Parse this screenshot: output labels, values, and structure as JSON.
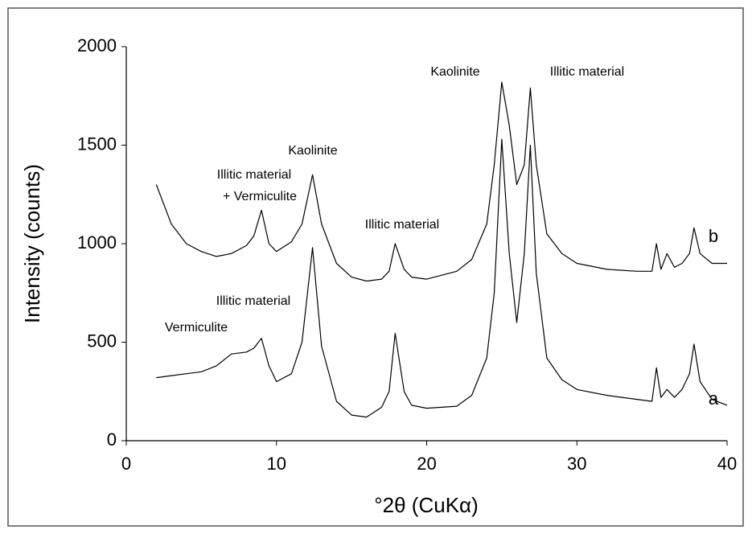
{
  "chart_data": {
    "type": "line",
    "x_label": "°2θ (CuKα)",
    "y_label": "Intensity (counts)",
    "x": [
      2,
      3,
      4,
      5,
      6,
      7,
      8,
      8.5,
      9,
      9.5,
      10,
      11,
      11.7,
      12.4,
      13,
      14,
      15,
      16,
      17,
      17.5,
      17.9,
      18.5,
      19,
      20,
      22,
      23,
      24,
      24.5,
      25,
      25.5,
      26,
      26.5,
      26.9,
      27.3,
      28,
      29,
      30,
      32,
      34,
      35,
      35.3,
      35.6,
      36,
      36.5,
      37,
      37.5,
      37.8,
      38.2,
      39,
      40
    ],
    "series": [
      {
        "name": "a",
        "color": "#000000",
        "values": [
          320,
          330,
          340,
          350,
          380,
          440,
          450,
          470,
          520,
          380,
          300,
          340,
          500,
          980,
          480,
          200,
          130,
          120,
          170,
          250,
          545,
          250,
          180,
          165,
          175,
          230,
          420,
          750,
          1530,
          950,
          600,
          950,
          1500,
          850,
          420,
          310,
          260,
          230,
          210,
          200,
          370,
          220,
          260,
          220,
          260,
          340,
          490,
          300,
          210,
          180
        ]
      },
      {
        "name": "b",
        "color": "#000000",
        "values": [
          1300,
          1100,
          1000,
          960,
          935,
          950,
          990,
          1040,
          1170,
          1000,
          960,
          1010,
          1100,
          1350,
          1100,
          900,
          830,
          810,
          820,
          860,
          1000,
          870,
          830,
          820,
          860,
          920,
          1100,
          1400,
          1820,
          1600,
          1300,
          1400,
          1790,
          1400,
          1050,
          950,
          900,
          870,
          860,
          860,
          1000,
          870,
          950,
          880,
          900,
          950,
          1080,
          950,
          900,
          900
        ]
      }
    ],
    "annotations": [
      "Vermiculite",
      "Illitic material",
      "Illitic material",
      "+ Vermiculite",
      "Kaolinite",
      "Illitic material",
      "Kaolinite",
      "Illitic material"
    ],
    "xlim": [
      0,
      40
    ],
    "xticks": [
      0,
      10,
      20,
      30,
      40
    ],
    "ylim": [
      0,
      2000
    ],
    "yticks": [
      0,
      500,
      1000,
      1500,
      2000
    ],
    "grid": false
  }
}
